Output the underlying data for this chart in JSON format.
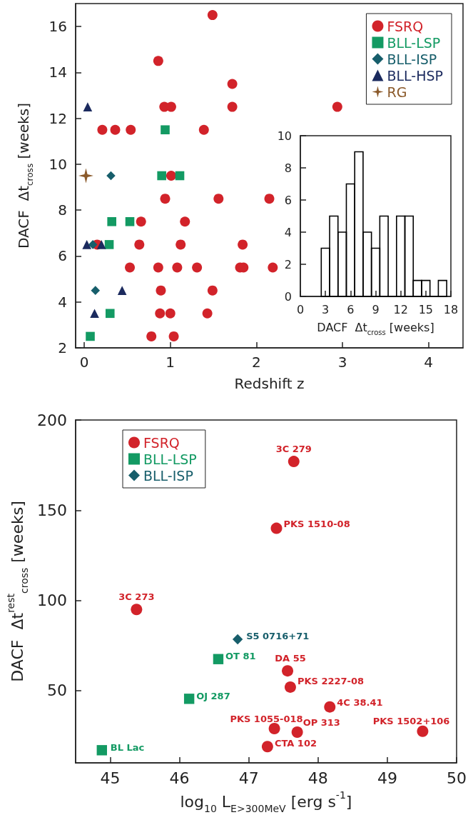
{
  "chart_data": [
    {
      "type": "scatter",
      "xlabel": "Redshift z",
      "ylabel": "DACF  Δt$_{cross}$ [weeks]",
      "xlim": [
        -0.1,
        4.4
      ],
      "xticks": [
        0,
        1,
        2,
        3,
        4
      ],
      "ylim": [
        2,
        17
      ],
      "yticks": [
        2,
        4,
        6,
        8,
        10,
        12,
        14,
        16
      ],
      "legend": "top right",
      "grid": false,
      "series": [
        {
          "name": "FSRQ",
          "color": "#d2232a",
          "marker": "circle",
          "x": [
            0.21,
            0.36,
            0.54,
            1.39,
            0.86,
            1.49,
            0.93,
            1.01,
            1.72,
            2.94,
            1.72,
            1.01,
            0.94,
            1.56,
            2.15,
            0.66,
            1.17,
            0.15,
            0.64,
            1.12,
            1.84,
            0.53,
            0.86,
            1.08,
            1.31,
            1.81,
            1.85,
            2.19,
            0.89,
            1.49,
            0.88,
            1.0,
            1.43,
            0.78,
            1.04
          ],
          "values": [
            11.5,
            11.5,
            11.5,
            11.5,
            14.5,
            16.5,
            12.5,
            12.5,
            12.5,
            12.5,
            13.5,
            9.5,
            8.5,
            8.5,
            8.5,
            7.5,
            7.5,
            6.5,
            6.5,
            6.5,
            6.5,
            5.5,
            5.5,
            5.5,
            5.5,
            5.5,
            5.5,
            5.5,
            4.5,
            4.5,
            3.5,
            3.5,
            3.5,
            2.5,
            2.5
          ]
        },
        {
          "name": "BLL-LSP",
          "color": "#139a63",
          "marker": "square",
          "x": [
            0.94,
            0.9,
            1.11,
            0.32,
            0.53,
            0.29,
            0.3,
            0.07
          ],
          "values": [
            11.5,
            9.5,
            9.5,
            7.5,
            7.5,
            6.5,
            3.5,
            2.5
          ]
        },
        {
          "name": "BLL-ISP",
          "color": "#175e6b",
          "marker": "diamond",
          "x": [
            0.31,
            0.1,
            0.13
          ],
          "values": [
            9.5,
            6.5,
            4.5
          ]
        },
        {
          "name": "BLL-HSP",
          "color": "#1b2a5e",
          "marker": "triangle",
          "x": [
            0.04,
            0.03,
            0.2,
            0.44,
            0.12
          ],
          "values": [
            12.5,
            6.5,
            6.5,
            4.5,
            3.5
          ]
        },
        {
          "name": "RG",
          "color": "#8b5a2b",
          "marker": "star",
          "x": [
            0.02
          ],
          "values": [
            9.5
          ]
        }
      ]
    },
    {
      "type": "histogram",
      "xlabel": "DACF  Δt$_{cross}$ [weeks]",
      "xlim": [
        0,
        18
      ],
      "xticks": [
        0,
        3,
        6,
        9,
        12,
        15,
        18
      ],
      "ylim": [
        0,
        10
      ],
      "yticks": [
        0,
        2,
        4,
        6,
        8,
        10
      ],
      "color": "#000000",
      "bins": [
        2.5,
        3.5,
        4.5,
        5.5,
        6.5,
        7.5,
        8.5,
        9.5,
        10.5,
        11.5,
        12.5,
        13.5,
        14.5,
        15.5,
        16.5,
        17.5
      ],
      "values": [
        3,
        5,
        4,
        7,
        9,
        4,
        3,
        5,
        0,
        5,
        5,
        1,
        1,
        0,
        1
      ]
    },
    {
      "type": "scatter",
      "xlabel": "log$_{10}$ L$_{E>300MeV}$ [erg s$^{-1}$]",
      "ylabel": "DACF  Δt$^{rest}$$_{cross}$ [weeks]",
      "xlim": [
        44.5,
        50
      ],
      "xticks": [
        45,
        46,
        47,
        48,
        49,
        50
      ],
      "ylim": [
        10,
        200
      ],
      "yticks": [
        50,
        100,
        150,
        200
      ],
      "legend": "top left",
      "grid": false,
      "series": [
        {
          "name": "FSRQ",
          "color": "#d2232a",
          "marker": "circle",
          "x": [
            47.65,
            47.4,
            45.38,
            47.56,
            47.6,
            48.17,
            47.37,
            47.7,
            49.51,
            47.27
          ],
          "values": [
            177,
            140,
            95,
            61,
            52,
            41,
            29,
            27,
            27.5,
            19
          ]
        },
        {
          "name": "BLL-LSP",
          "color": "#139a63",
          "marker": "square",
          "x": [
            46.56,
            46.14,
            44.88
          ],
          "values": [
            67.5,
            45.5,
            17
          ]
        },
        {
          "name": "BLL-ISP",
          "color": "#175e6b",
          "marker": "diamond",
          "x": [
            46.84
          ],
          "values": [
            78.5
          ]
        }
      ],
      "annotations": [
        {
          "text": "3C 279",
          "x": 47.65,
          "y": 177
        },
        {
          "text": "PKS 1510-08",
          "x": 47.4,
          "y": 140
        },
        {
          "text": "3C 273",
          "x": 45.38,
          "y": 95
        },
        {
          "text": "S5 0716+71",
          "x": 46.84,
          "y": 78.5
        },
        {
          "text": "OT 81",
          "x": 46.56,
          "y": 67.5
        },
        {
          "text": "DA 55",
          "x": 47.56,
          "y": 61
        },
        {
          "text": "PKS 2227-08",
          "x": 47.6,
          "y": 52
        },
        {
          "text": "OJ 287",
          "x": 46.14,
          "y": 45.5
        },
        {
          "text": "4C 38.41",
          "x": 48.17,
          "y": 41
        },
        {
          "text": "PKS 1055-018",
          "x": 47.37,
          "y": 29
        },
        {
          "text": "OP 313",
          "x": 47.7,
          "y": 27
        },
        {
          "text": "PKS 1502+106",
          "x": 49.51,
          "y": 27.5
        },
        {
          "text": "CTA 102",
          "x": 47.27,
          "y": 19
        },
        {
          "text": "BL Lac",
          "x": 44.88,
          "y": 17
        }
      ]
    }
  ]
}
